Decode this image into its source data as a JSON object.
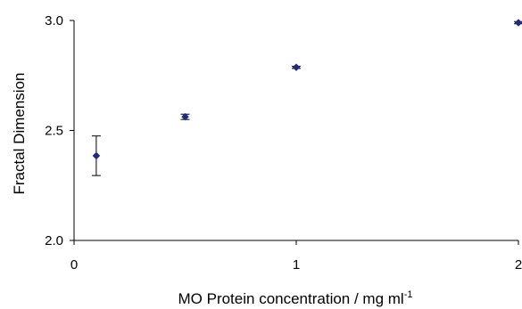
{
  "chart_data": {
    "type": "scatter",
    "xlabel": "MO Protein concentration / mg ml",
    "xlabel_superscript": "-1",
    "ylabel": "Fractal Dimension",
    "xlim": [
      0,
      2
    ],
    "ylim": [
      2.0,
      3.0
    ],
    "x_ticks": [
      "0",
      "1",
      "2"
    ],
    "y_ticks": [
      "2.0",
      "2.5",
      "3.0"
    ],
    "grid": false,
    "legend": "none",
    "series": [
      {
        "x": [
          0.1,
          0.5,
          1.0,
          2.0
        ],
        "y": [
          2.385,
          2.562,
          2.787,
          2.99
        ],
        "error": [
          0.09,
          0.012,
          0.005,
          0.005
        ],
        "color": "#1f2a80",
        "marker": "diamond"
      }
    ]
  }
}
